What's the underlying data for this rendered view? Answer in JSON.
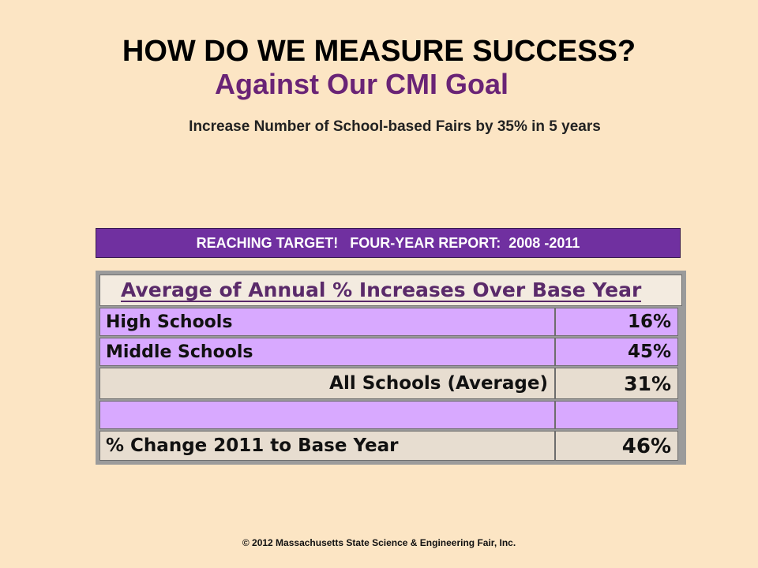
{
  "slide": {
    "title": "HOW DO WE MEASURE SUCCESS?",
    "subtitle": "Against  Our CMI Goal",
    "goal": "Increase Number of School-based Fairs by 35% in 5 years",
    "banner": "REACHING TARGET!   FOUR-YEAR REPORT:  2008 -2011",
    "footer": "© 2012 Massachusetts  State Science & Engineering Fair, Inc."
  },
  "table": {
    "header": "Average of Annual % Increases Over Base Year",
    "rows": [
      {
        "label": "High Schools",
        "value": "16%"
      },
      {
        "label": "Middle Schools",
        "value": "45%"
      },
      {
        "label": "All Schools (Average)",
        "value": "31%"
      },
      {
        "label": "",
        "value": ""
      },
      {
        "label": "% Change 2011 to Base Year",
        "value": "46%"
      }
    ]
  },
  "colors": {
    "background": "#fce5c4",
    "subtitle": "#6a2476",
    "banner": "#7030a0",
    "row_purple": "#d8a9ff",
    "row_beige": "#e7ddd0"
  }
}
